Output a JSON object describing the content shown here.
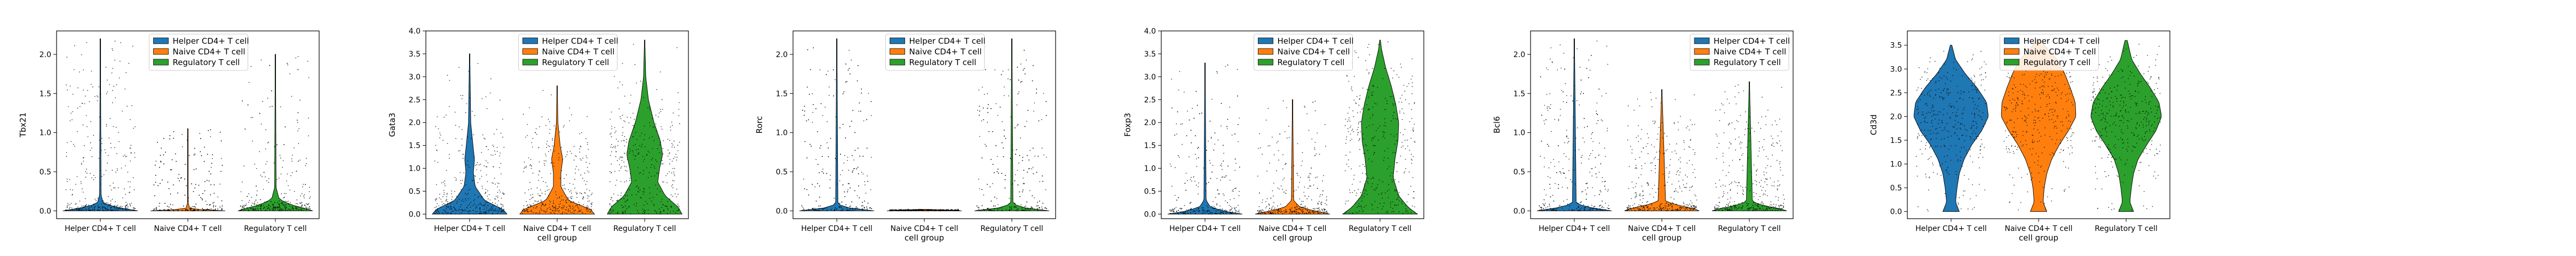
{
  "palette": {
    "Helper CD4+ T cell": "#1f77b4",
    "Naive CD4+ T cell": "#ff7f0e",
    "Regulatory T cell": "#2ca02c"
  },
  "chart_data": [
    {
      "type": "violin",
      "categories": [
        "Helper CD4+ T cell",
        "Naive CD4+ T cell",
        "Regulatory T cell"
      ],
      "xlabel": "",
      "ylabel": "Tbx21",
      "ylim": [
        -0.1,
        2.3
      ],
      "yticks": [
        "0.0",
        "0.5",
        "1.0",
        "1.5",
        "2.0"
      ],
      "violins": [
        {
          "max": 2.2,
          "profile": [
            [
              0,
              1
            ],
            [
              0.02,
              0.8
            ],
            [
              0.05,
              0.35
            ],
            [
              0.1,
              0.08
            ],
            [
              0.2,
              0.02
            ],
            [
              2.2,
              0.004
            ]
          ]
        },
        {
          "max": 1.05,
          "profile": [
            [
              0,
              1
            ],
            [
              0.01,
              0.5
            ],
            [
              0.03,
              0.05
            ],
            [
              0.1,
              0.01
            ],
            [
              1.05,
              0.004
            ]
          ]
        },
        {
          "max": 2.0,
          "profile": [
            [
              0,
              1
            ],
            [
              0.03,
              0.8
            ],
            [
              0.08,
              0.4
            ],
            [
              0.15,
              0.1
            ],
            [
              0.3,
              0.02
            ],
            [
              2.0,
              0.004
            ]
          ]
        }
      ],
      "legend": {
        "entries": [
          "Helper CD4+ T cell",
          "Naive CD4+ T cell",
          "Regulatory T cell"
        ],
        "loc": "upper center"
      }
    },
    {
      "type": "violin",
      "categories": [
        "Helper CD4+ T cell",
        "Naive CD4+ T cell",
        "Regulatory T cell"
      ],
      "xlabel": "cell group",
      "ylabel": "Gata3",
      "ylim": [
        -0.1,
        4.0
      ],
      "yticks": [
        "0.0",
        "0.5",
        "1.0",
        "1.5",
        "2.0",
        "2.5",
        "3.0",
        "3.5",
        "4.0"
      ],
      "violins": [
        {
          "max": 3.5,
          "profile": [
            [
              0,
              1
            ],
            [
              0.1,
              0.9
            ],
            [
              0.3,
              0.4
            ],
            [
              0.6,
              0.15
            ],
            [
              0.9,
              0.1
            ],
            [
              1.2,
              0.13
            ],
            [
              1.5,
              0.09
            ],
            [
              2.0,
              0.03
            ],
            [
              3.5,
              0.005
            ]
          ]
        },
        {
          "max": 2.8,
          "profile": [
            [
              0,
              1
            ],
            [
              0.1,
              0.9
            ],
            [
              0.3,
              0.3
            ],
            [
              0.6,
              0.1
            ],
            [
              0.9,
              0.1
            ],
            [
              1.2,
              0.15
            ],
            [
              1.5,
              0.08
            ],
            [
              2.0,
              0.02
            ],
            [
              2.8,
              0.005
            ]
          ]
        },
        {
          "max": 3.8,
          "profile": [
            [
              0,
              1
            ],
            [
              0.15,
              0.9
            ],
            [
              0.4,
              0.55
            ],
            [
              0.7,
              0.35
            ],
            [
              1.0,
              0.4
            ],
            [
              1.3,
              0.48
            ],
            [
              1.6,
              0.42
            ],
            [
              2.0,
              0.25
            ],
            [
              2.5,
              0.1
            ],
            [
              3.0,
              0.03
            ],
            [
              3.8,
              0.005
            ]
          ]
        }
      ],
      "legend": {
        "entries": [
          "Helper CD4+ T cell",
          "Naive CD4+ T cell",
          "Regulatory T cell"
        ],
        "loc": "upper center"
      }
    },
    {
      "type": "violin",
      "categories": [
        "Helper CD4+ T cell",
        "Naive CD4+ T cell",
        "Regulatory T cell"
      ],
      "xlabel": "cell group",
      "ylabel": "Rorc",
      "ylim": [
        -0.1,
        2.3
      ],
      "yticks": [
        "0.0",
        "0.5",
        "1.0",
        "1.5",
        "2.0"
      ],
      "violins": [
        {
          "max": 2.2,
          "profile": [
            [
              0,
              1
            ],
            [
              0.02,
              0.6
            ],
            [
              0.05,
              0.15
            ],
            [
              0.1,
              0.03
            ],
            [
              2.2,
              0.004
            ]
          ]
        },
        {
          "max": 0.02,
          "profile": [
            [
              0,
              1
            ],
            [
              0.01,
              0.6
            ],
            [
              0.02,
              0.05
            ]
          ]
        },
        {
          "max": 2.2,
          "profile": [
            [
              0,
              1
            ],
            [
              0.02,
              0.6
            ],
            [
              0.05,
              0.2
            ],
            [
              0.1,
              0.03
            ],
            [
              2.2,
              0.004
            ]
          ]
        }
      ],
      "legend": {
        "entries": [
          "Helper CD4+ T cell",
          "Naive CD4+ T cell",
          "Regulatory T cell"
        ],
        "loc": "upper center"
      }
    },
    {
      "type": "violin",
      "categories": [
        "Helper CD4+ T cell",
        "Naive CD4+ T cell",
        "Regulatory T cell"
      ],
      "xlabel": "cell group",
      "ylabel": "Foxp3",
      "ylim": [
        -0.1,
        4.0
      ],
      "yticks": [
        "0.0",
        "0.5",
        "1.0",
        "1.5",
        "2.0",
        "2.5",
        "3.0",
        "3.5",
        "4.0"
      ],
      "violins": [
        {
          "max": 3.3,
          "profile": [
            [
              0,
              1
            ],
            [
              0.05,
              0.6
            ],
            [
              0.15,
              0.15
            ],
            [
              0.3,
              0.03
            ],
            [
              3.3,
              0.004
            ]
          ]
        },
        {
          "max": 2.5,
          "profile": [
            [
              0,
              1
            ],
            [
              0.05,
              0.7
            ],
            [
              0.15,
              0.2
            ],
            [
              0.3,
              0.03
            ],
            [
              2.5,
              0.004
            ]
          ]
        },
        {
          "max": 3.8,
          "profile": [
            [
              0,
              1
            ],
            [
              0.15,
              0.75
            ],
            [
              0.4,
              0.5
            ],
            [
              0.8,
              0.35
            ],
            [
              1.2,
              0.4
            ],
            [
              1.6,
              0.48
            ],
            [
              2.0,
              0.5
            ],
            [
              2.4,
              0.42
            ],
            [
              2.8,
              0.3
            ],
            [
              3.2,
              0.15
            ],
            [
              3.6,
              0.04
            ],
            [
              3.8,
              0.01
            ]
          ]
        }
      ],
      "legend": {
        "entries": [
          "Helper CD4+ T cell",
          "Naive CD4+ T cell",
          "Regulatory T cell"
        ],
        "loc": "upper center"
      }
    },
    {
      "type": "violin",
      "categories": [
        "Helper CD4+ T cell",
        "Naive CD4+ T cell",
        "Regulatory T cell"
      ],
      "xlabel": "cell group",
      "ylabel": "Bcl6",
      "ylim": [
        -0.1,
        2.3
      ],
      "yticks": [
        "0.0",
        "0.5",
        "1.0",
        "1.5",
        "2.0"
      ],
      "violins": [
        {
          "max": 2.2,
          "profile": [
            [
              0,
              1
            ],
            [
              0.02,
              0.75
            ],
            [
              0.05,
              0.3
            ],
            [
              0.1,
              0.05
            ],
            [
              2.2,
              0.004
            ]
          ]
        },
        {
          "max": 1.55,
          "profile": [
            [
              0,
              1
            ],
            [
              0.03,
              0.85
            ],
            [
              0.07,
              0.45
            ],
            [
              0.12,
              0.1
            ],
            [
              1.55,
              0.004
            ]
          ]
        },
        {
          "max": 1.65,
          "profile": [
            [
              0,
              1
            ],
            [
              0.03,
              0.8
            ],
            [
              0.07,
              0.35
            ],
            [
              0.12,
              0.08
            ],
            [
              1.65,
              0.004
            ]
          ]
        }
      ],
      "legend": {
        "entries": [
          "Helper CD4+ T cell",
          "Naive CD4+ T cell",
          "Regulatory T cell"
        ],
        "loc": "upper right"
      }
    },
    {
      "type": "violin",
      "categories": [
        "Helper CD4+ T cell",
        "Naive CD4+ T cell",
        "Regulatory T cell"
      ],
      "xlabel": "cell group",
      "ylabel": "Cd3d",
      "ylim": [
        -0.15,
        3.8
      ],
      "yticks": [
        "0.0",
        "0.5",
        "1.0",
        "1.5",
        "2.0",
        "2.5",
        "3.0",
        "3.5"
      ],
      "violins": [
        {
          "max": 3.5,
          "profile": [
            [
              0,
              0.22
            ],
            [
              0.2,
              0.12
            ],
            [
              0.5,
              0.16
            ],
            [
              0.8,
              0.22
            ],
            [
              1.1,
              0.35
            ],
            [
              1.4,
              0.55
            ],
            [
              1.7,
              0.82
            ],
            [
              2.0,
              1.0
            ],
            [
              2.3,
              0.95
            ],
            [
              2.6,
              0.7
            ],
            [
              2.9,
              0.38
            ],
            [
              3.2,
              0.12
            ],
            [
              3.5,
              0.02
            ]
          ]
        },
        {
          "max": 3.6,
          "profile": [
            [
              0,
              0.22
            ],
            [
              0.2,
              0.12
            ],
            [
              0.5,
              0.15
            ],
            [
              0.8,
              0.22
            ],
            [
              1.1,
              0.35
            ],
            [
              1.4,
              0.55
            ],
            [
              1.7,
              0.8
            ],
            [
              2.0,
              1.0
            ],
            [
              2.3,
              0.98
            ],
            [
              2.6,
              0.85
            ],
            [
              2.9,
              0.7
            ],
            [
              3.2,
              0.5
            ],
            [
              3.4,
              0.25
            ],
            [
              3.6,
              0.05
            ]
          ]
        },
        {
          "max": 3.6,
          "profile": [
            [
              0,
              0.2
            ],
            [
              0.2,
              0.1
            ],
            [
              0.5,
              0.14
            ],
            [
              0.8,
              0.2
            ],
            [
              1.1,
              0.32
            ],
            [
              1.4,
              0.55
            ],
            [
              1.7,
              0.8
            ],
            [
              2.0,
              0.95
            ],
            [
              2.3,
              0.88
            ],
            [
              2.6,
              0.65
            ],
            [
              2.9,
              0.38
            ],
            [
              3.2,
              0.15
            ],
            [
              3.6,
              0.03
            ]
          ]
        }
      ],
      "legend": {
        "entries": [
          "Helper CD4+ T cell",
          "Naive CD4+ T cell",
          "Regulatory T cell"
        ],
        "loc": "upper center"
      }
    }
  ]
}
